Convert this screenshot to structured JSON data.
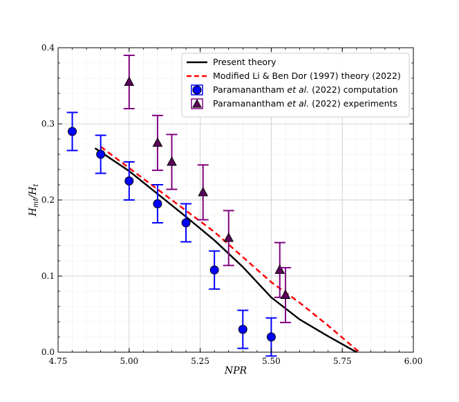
{
  "chart_data": {
    "type": "line",
    "xlabel": "NPR",
    "ylabel_main": "H",
    "ylabel_sub_num": "mt",
    "ylabel_div": "/H",
    "ylabel_sub_den": "t",
    "xlim": [
      4.75,
      6.0
    ],
    "ylim": [
      0.0,
      0.4
    ],
    "xticks": [
      "4.75",
      "5.00",
      "5.25",
      "5.50",
      "5.75",
      "6.00"
    ],
    "xtick_values": [
      4.75,
      5.0,
      5.25,
      5.5,
      5.75,
      6.0
    ],
    "yticks": [
      "0.0",
      "0.1",
      "0.2",
      "0.3",
      "0.4"
    ],
    "ytick_values": [
      0.0,
      0.1,
      0.2,
      0.3,
      0.4
    ],
    "grid": true,
    "legend_position": "top-right",
    "series": [
      {
        "name": "Present theory",
        "kind": "line",
        "color": "#000000",
        "dash": "solid",
        "x": [
          4.88,
          5.0,
          5.1,
          5.2,
          5.3,
          5.4,
          5.5,
          5.6,
          5.7,
          5.8
        ],
        "y": [
          0.268,
          0.238,
          0.208,
          0.178,
          0.147,
          0.112,
          0.072,
          0.043,
          0.021,
          0.0
        ]
      },
      {
        "name": "Modified Li & Ben Dor (1997) theory (2022)",
        "kind": "line",
        "color": "#ff0000",
        "dash": "dashed",
        "x": [
          4.9,
          5.0,
          5.1,
          5.2,
          5.3,
          5.4,
          5.5,
          5.6,
          5.7,
          5.81
        ],
        "y": [
          0.27,
          0.242,
          0.214,
          0.186,
          0.158,
          0.125,
          0.092,
          0.065,
          0.035,
          0.0
        ]
      },
      {
        "name": "Paramanantham et al. (2022) computation",
        "name_prefix": "Paramanantham ",
        "name_italic": "et al.",
        "name_suffix": " (2022) computation",
        "kind": "scatter",
        "marker": "circle",
        "color": "#0000ff",
        "errcolor": "#0000ff",
        "x": [
          4.8,
          4.9,
          5.0,
          5.1,
          5.2,
          5.3,
          5.4,
          5.5
        ],
        "y": [
          0.29,
          0.26,
          0.225,
          0.195,
          0.17,
          0.108,
          0.03,
          0.02
        ],
        "err": [
          0.025,
          0.025,
          0.025,
          0.025,
          0.025,
          0.025,
          0.025,
          0.025
        ]
      },
      {
        "name": "Paramanantham et al. (2022) experiments",
        "name_prefix": "Paramanantham ",
        "name_italic": "et al.",
        "name_suffix": " (2022) experiments",
        "kind": "scatter",
        "marker": "triangle",
        "color": "#5a005a",
        "errcolor": "#800080",
        "x": [
          5.0,
          5.1,
          5.15,
          5.26,
          5.35,
          5.53,
          5.55
        ],
        "y": [
          0.355,
          0.275,
          0.25,
          0.21,
          0.15,
          0.108,
          0.075
        ],
        "err": [
          0.035,
          0.036,
          0.036,
          0.036,
          0.036,
          0.036,
          0.036
        ]
      }
    ]
  }
}
